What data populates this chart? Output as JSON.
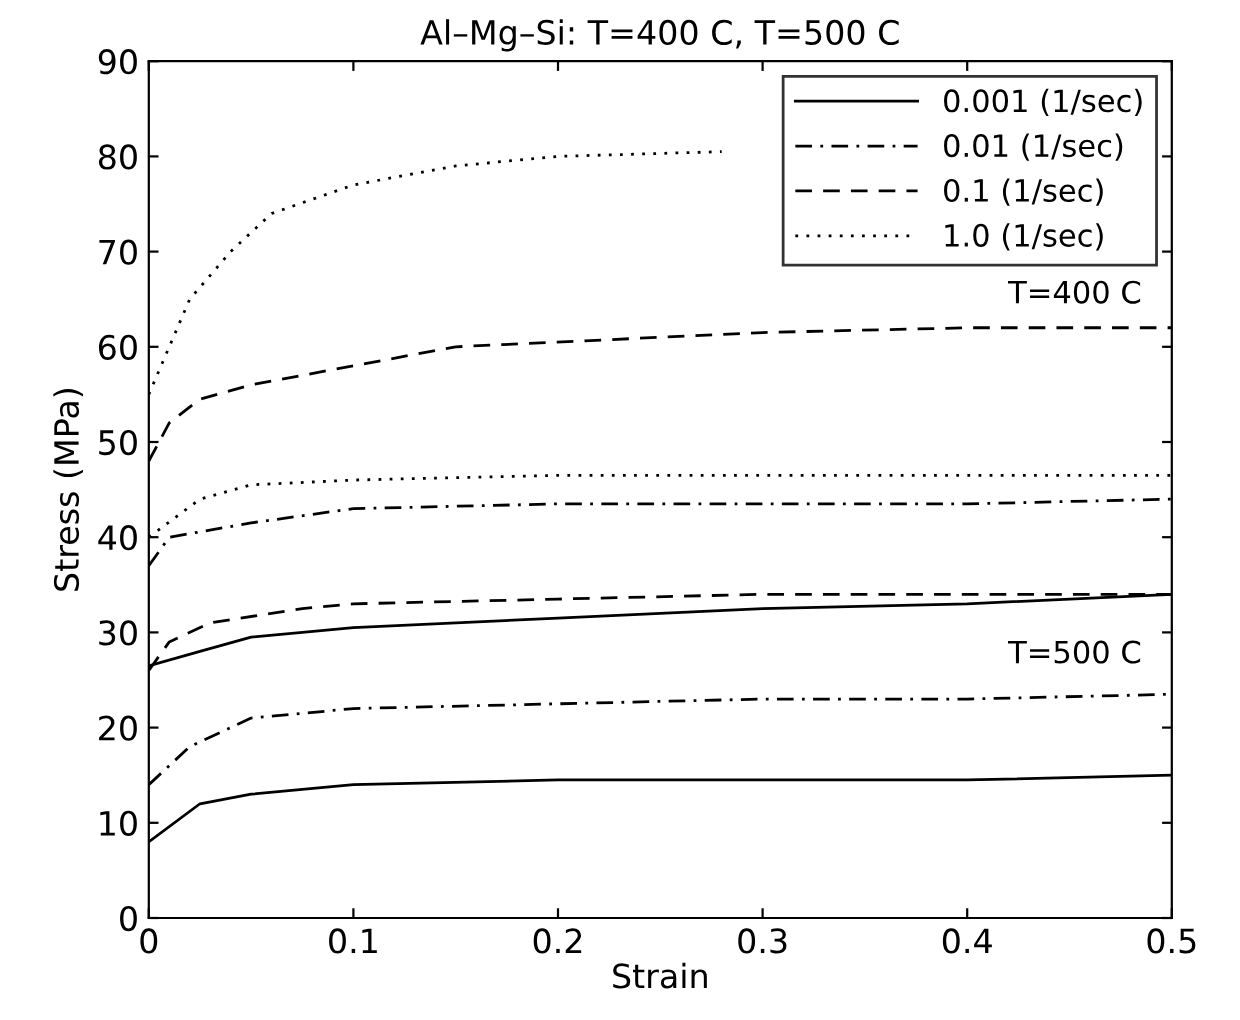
{
  "chart_data": {
    "type": "line",
    "title": "Al–Mg–Si: T=400 C, T=500 C",
    "xlabel": "Strain",
    "ylabel": "Stress (MPa)",
    "xlim": [
      0,
      0.5
    ],
    "ylim": [
      0,
      90
    ],
    "xticks": [
      0,
      0.1,
      0.2,
      0.3,
      0.4,
      0.5
    ],
    "yticks": [
      0,
      10,
      20,
      30,
      40,
      50,
      60,
      70,
      80,
      90
    ],
    "grid": false,
    "legend": "top right",
    "marker": "none",
    "series": [
      {
        "name": "0.001 (1/sec)",
        "color": "#000000",
        "line_style": "solid",
        "x": [
          0,
          0.025,
          0.05,
          0.1,
          0.2,
          0.3,
          0.4,
          0.5
        ],
        "values": [
          26.5,
          28,
          29.5,
          30.5,
          31.5,
          32.5,
          33,
          34
        ]
      },
      {
        "name": "0.01 (1/sec)",
        "color": "#000000",
        "line_style": "dashdot",
        "x": [
          0,
          0.01,
          0.05,
          0.1,
          0.2,
          0.3,
          0.4,
          0.5
        ],
        "values": [
          37,
          40,
          41.5,
          43,
          43.5,
          43.5,
          43.5,
          44
        ]
      },
      {
        "name": "0.1 (1/sec)",
        "color": "#000000",
        "line_style": "dashed",
        "x": [
          0,
          0.01,
          0.025,
          0.05,
          0.1,
          0.15,
          0.25,
          0.3,
          0.4,
          0.5
        ],
        "values": [
          48,
          52,
          54.5,
          56,
          58,
          60,
          61,
          61.5,
          62,
          62
        ]
      },
      {
        "name": "1.0 (1/sec)",
        "color": "#000000",
        "line_style": "dotted",
        "x": [
          0,
          0.01,
          0.02,
          0.04,
          0.06,
          0.1,
          0.15,
          0.2,
          0.28
        ],
        "values": [
          55,
          60,
          65,
          70,
          74,
          77,
          79,
          80,
          80.5
        ]
      },
      {
        "color": "#000000",
        "line_style": "dotted",
        "x": [
          0,
          0.025,
          0.05,
          0.1,
          0.2,
          0.3,
          0.4,
          0.5
        ],
        "values": [
          40,
          44,
          45.5,
          46,
          46.5,
          46.5,
          46.5,
          46.5
        ]
      },
      {
        "color": "#000000",
        "line_style": "dashed",
        "x": [
          0,
          0.01,
          0.03,
          0.075,
          0.1,
          0.2,
          0.3,
          0.4,
          0.5
        ],
        "values": [
          26,
          29,
          31,
          32.5,
          33,
          33.5,
          34,
          34,
          34
        ]
      },
      {
        "color": "#000000",
        "line_style": "dashdot",
        "x": [
          0,
          0.02,
          0.05,
          0.1,
          0.2,
          0.3,
          0.4,
          0.5
        ],
        "values": [
          14,
          18,
          21,
          22,
          22.5,
          23,
          23,
          23.5
        ]
      },
      {
        "color": "#000000",
        "line_style": "solid",
        "x": [
          0,
          0.025,
          0.05,
          0.1,
          0.2,
          0.3,
          0.4,
          0.5
        ],
        "values": [
          8,
          12,
          13,
          14,
          14.5,
          14.5,
          14.5,
          15
        ]
      }
    ],
    "annotations": [
      "T=400 C",
      "T=500 C"
    ]
  }
}
